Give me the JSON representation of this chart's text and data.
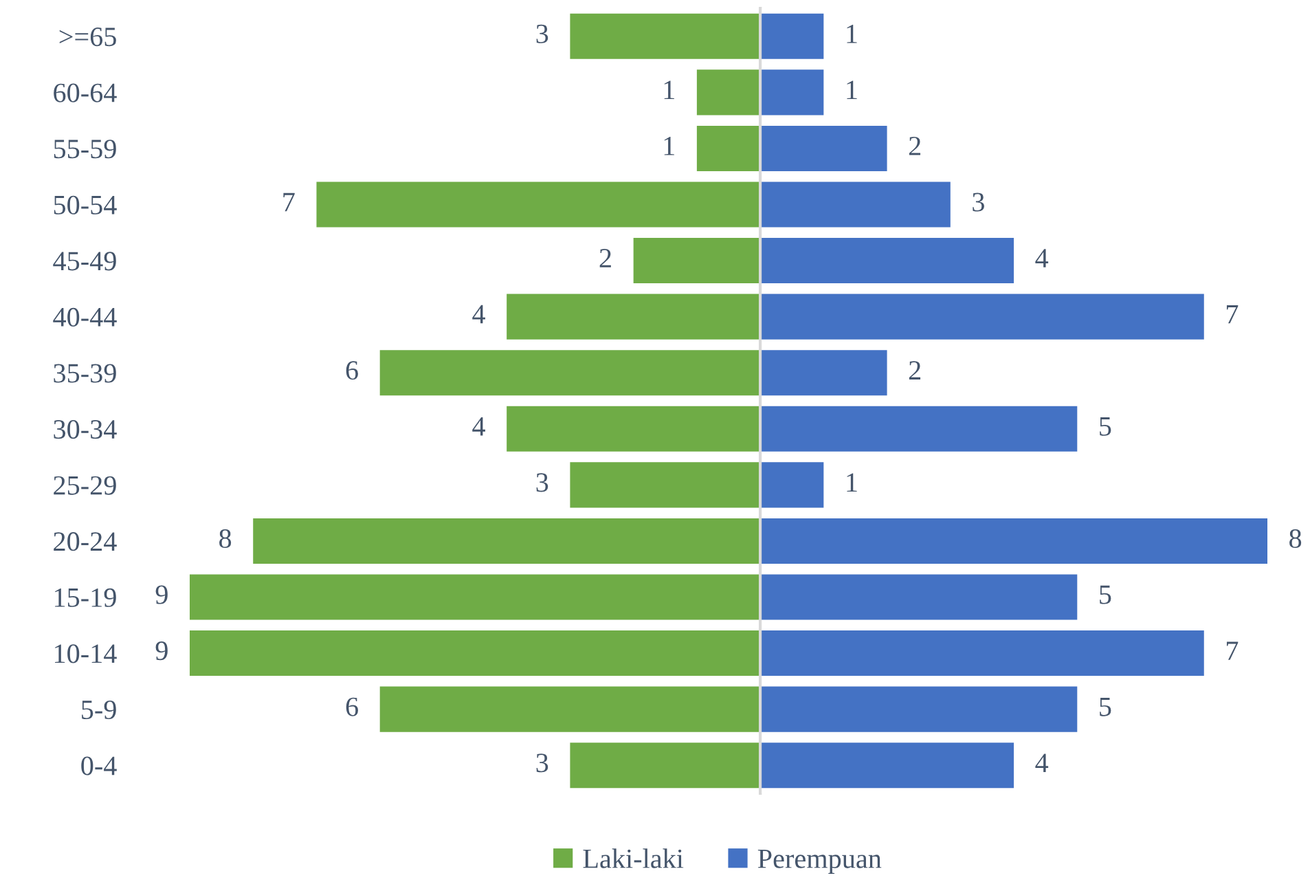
{
  "chart_data": [
    {
      "type": "bar",
      "orientation": "horizontal",
      "categories": [
        ">=65",
        "60-64",
        "55-59",
        "50-54",
        "45-49",
        "40-44",
        "35-39",
        "30-34",
        "25-29",
        "20-24",
        "15-19",
        "10-14",
        "5-9",
        "0-4"
      ],
      "series": [
        {
          "name": "Laki-laki",
          "color": "#6fac46",
          "values": [
            3,
            1,
            1,
            7,
            2,
            4,
            6,
            4,
            3,
            8,
            9,
            9,
            6,
            3
          ]
        }
      ],
      "xlim": [
        9,
        0
      ],
      "data_labels": true,
      "tick_labels": "y",
      "legend": "bottom"
    },
    {
      "type": "bar",
      "orientation": "horizontal",
      "categories": [
        null,
        null,
        null,
        null,
        null,
        null,
        null,
        null,
        null,
        null,
        null,
        null,
        null,
        null
      ],
      "series": [
        {
          "name": "Perempuan",
          "color": "#4472c4",
          "values": [
            1,
            1,
            2,
            3,
            4,
            7,
            2,
            5,
            1,
            8,
            5,
            7,
            5,
            4
          ]
        }
      ],
      "xlim": [
        0,
        8
      ],
      "data_labels": true,
      "tick_labels": false,
      "legend": "bottom"
    }
  ]
}
